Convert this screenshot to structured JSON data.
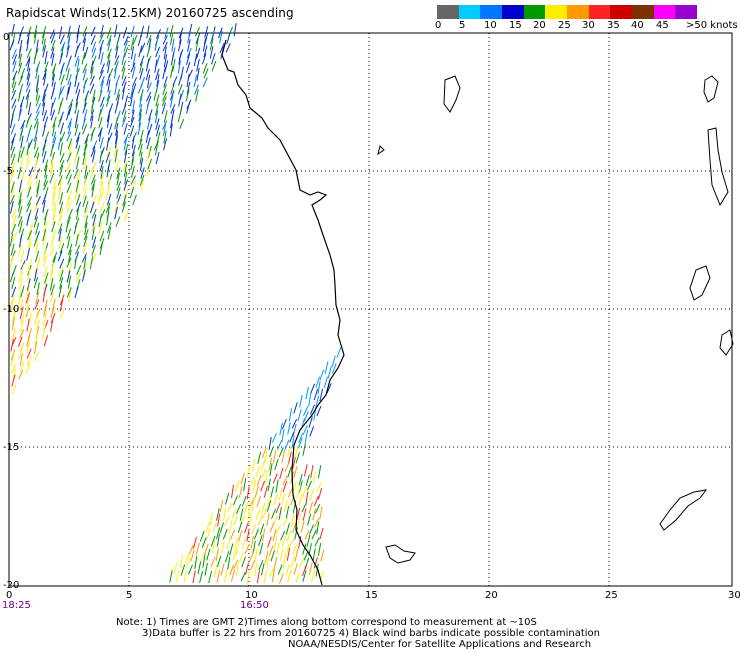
{
  "title": "Rapidscat Winds(12.5KM) 20160725 ascending",
  "legend": {
    "colors": [
      "#666666",
      "#00ccff",
      "#0077ff",
      "#0000cc",
      "#009900",
      "#ffee00",
      "#ff9900",
      "#ff2222",
      "#cc0000",
      "#7a3300",
      "#ff00ff",
      "#9900cc"
    ],
    "labels": [
      "0",
      "5",
      "10",
      "15",
      "20",
      "25",
      "30",
      "35",
      "40",
      "45",
      ">50 knots"
    ]
  },
  "axes": {
    "lat_labels": [
      "0",
      "-5",
      "-10",
      "-15",
      "-20"
    ],
    "lon_labels": [
      "0",
      "5",
      "10",
      "15",
      "20",
      "25",
      "30"
    ]
  },
  "times": [
    "18:25",
    "16:50"
  ],
  "notes": {
    "line1": "Note: 1) Times are GMT 2)Times along bottom correspond to measurement at ~10S",
    "line2": "3)Data buffer is 22 hrs from 20160725 4) Black wind barbs indicate possible contamination",
    "line3": "NOAA/NESDIS/Center for Satellite Applications and Research"
  }
}
